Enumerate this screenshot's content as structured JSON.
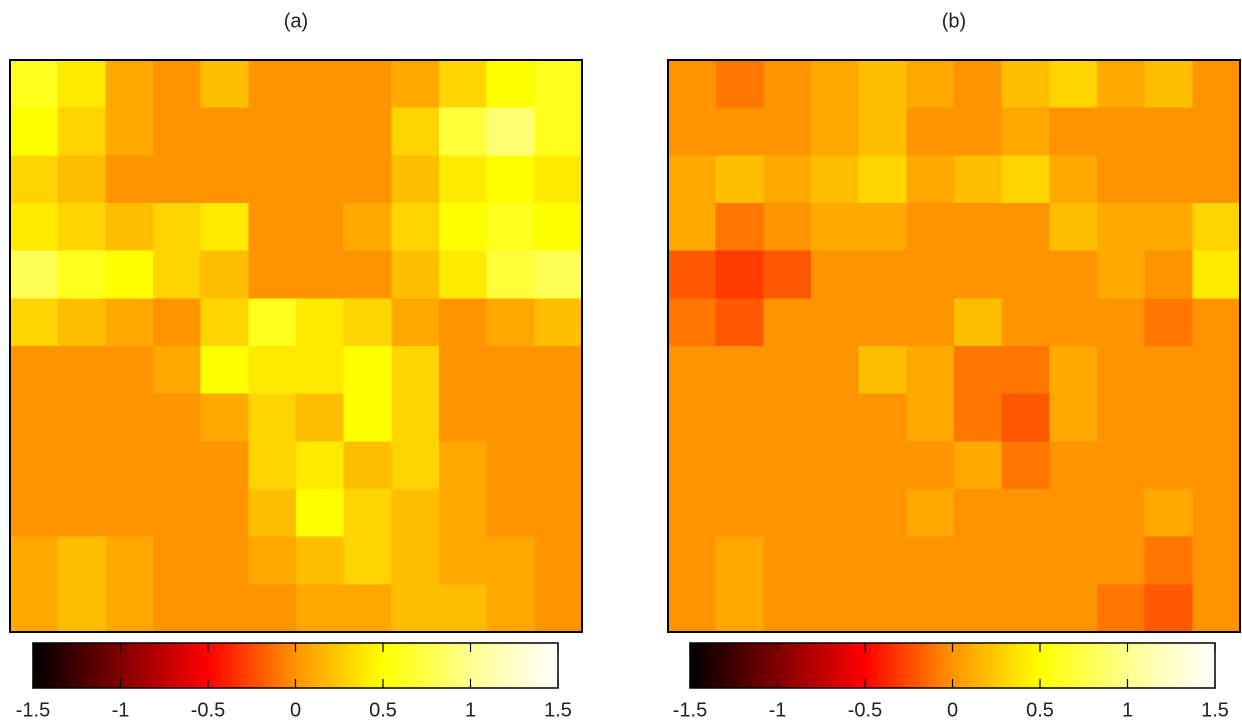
{
  "chart_data": [
    {
      "type": "heatmap",
      "title": "(a)",
      "z": [
        [
          0.6,
          0.4,
          0.1,
          0,
          0.2,
          0,
          0,
          0,
          0.1,
          0.3,
          0.5,
          0.6
        ],
        [
          0.5,
          0.3,
          0.1,
          0,
          0,
          0,
          0,
          0,
          0.3,
          0.7,
          0.9,
          0.6
        ],
        [
          0.3,
          0.2,
          0,
          0,
          0,
          0,
          0,
          0,
          0.2,
          0.4,
          0.5,
          0.4
        ],
        [
          0.4,
          0.3,
          0.2,
          0.3,
          0.4,
          0,
          0,
          0.1,
          0.3,
          0.5,
          0.6,
          0.5
        ],
        [
          0.8,
          0.6,
          0.5,
          0.3,
          0.2,
          0,
          0,
          0,
          0.2,
          0.4,
          0.7,
          0.8
        ],
        [
          0.3,
          0.2,
          0.1,
          0,
          0.3,
          0.6,
          0.4,
          0.3,
          0.1,
          0,
          0.1,
          0.2
        ],
        [
          0,
          0,
          0,
          0.1,
          0.5,
          0.4,
          0.4,
          0.5,
          0.3,
          0,
          0,
          0
        ],
        [
          0,
          0,
          0,
          0,
          0.1,
          0.3,
          0.2,
          0.5,
          0.3,
          0,
          0,
          0
        ],
        [
          0,
          0,
          0,
          0,
          0,
          0.3,
          0.4,
          0.2,
          0.3,
          0.1,
          0,
          0
        ],
        [
          0,
          0,
          0,
          0,
          0,
          0.2,
          0.5,
          0.3,
          0.2,
          0.1,
          0,
          0
        ],
        [
          0.1,
          0.2,
          0.1,
          0,
          0,
          0.1,
          0.2,
          0.3,
          0.2,
          0.1,
          0.1,
          0
        ],
        [
          0.1,
          0.2,
          0.1,
          0,
          0,
          0,
          0.1,
          0.1,
          0.2,
          0.2,
          0.1,
          0
        ]
      ],
      "zlim": [
        -1.5,
        1.5
      ],
      "zticks": [
        -1.5,
        -1,
        -0.5,
        0,
        0.5,
        1,
        1.5
      ],
      "colormap": [
        "#000000",
        "#800000",
        "#ff0000",
        "#ff9400",
        "#ffff00",
        "#ffff90",
        "#ffffff"
      ]
    },
    {
      "type": "heatmap",
      "title": "(b)",
      "z": [
        [
          0,
          -0.1,
          0,
          0.1,
          0.2,
          0.1,
          0,
          0.2,
          0.3,
          0.1,
          0.2,
          0
        ],
        [
          0,
          0,
          0,
          0.1,
          0.2,
          0,
          0,
          0.1,
          0,
          0,
          0,
          0
        ],
        [
          0.1,
          0.2,
          0.1,
          0.2,
          0.3,
          0.1,
          0.2,
          0.3,
          0.1,
          0,
          0,
          0
        ],
        [
          0.1,
          -0.1,
          0,
          0.1,
          0.1,
          0,
          0,
          0,
          0.2,
          0.1,
          0.1,
          0.3
        ],
        [
          -0.2,
          -0.3,
          -0.2,
          0,
          0,
          0,
          0,
          0,
          0,
          0.1,
          0,
          0.4
        ],
        [
          -0.1,
          -0.2,
          0,
          0,
          0,
          0,
          0.2,
          0,
          0,
          0,
          -0.1,
          0
        ],
        [
          0,
          0,
          0,
          0,
          0.2,
          0.1,
          -0.1,
          -0.1,
          0.1,
          0,
          0,
          0
        ],
        [
          0,
          0,
          0,
          0,
          0,
          0.1,
          -0.1,
          -0.2,
          0.1,
          0,
          0,
          0
        ],
        [
          0,
          0,
          0,
          0,
          0,
          0,
          0.1,
          -0.1,
          0,
          0,
          0,
          0
        ],
        [
          0,
          0,
          0,
          0,
          0,
          0.1,
          0,
          0,
          0,
          0,
          0.1,
          0
        ],
        [
          0,
          0.1,
          0,
          0,
          0,
          0,
          0,
          0,
          0,
          0,
          -0.1,
          0
        ],
        [
          0,
          0.1,
          0,
          0,
          0,
          0,
          0,
          0,
          0,
          -0.1,
          -0.2,
          0
        ]
      ],
      "zlim": [
        -1.5,
        1.5
      ],
      "zticks": [
        -1.5,
        -1,
        -0.5,
        0,
        0.5,
        1,
        1.5
      ],
      "colormap": [
        "#000000",
        "#800000",
        "#ff0000",
        "#ff9400",
        "#ffff00",
        "#ffff90",
        "#ffffff"
      ]
    }
  ]
}
